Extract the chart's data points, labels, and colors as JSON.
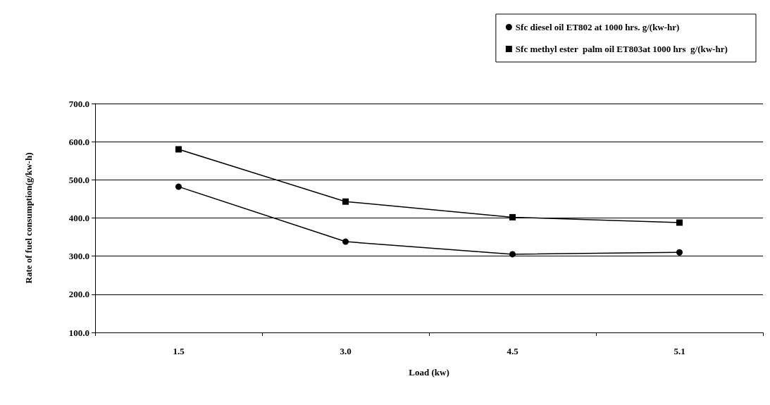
{
  "chart_data": {
    "type": "line",
    "xlabel": "Load (kw)",
    "ylabel": "Rate of fuel consumption(g/kw-h)",
    "categories": [
      "1.5",
      "3.0",
      "4.5",
      "5.1"
    ],
    "series": [
      {
        "name": "Sfc diesel oil ET802 at 1000 hrs. g/(kw-hr)",
        "color": "#000000",
        "marker": "circle",
        "values": [
          482,
          338,
          305,
          310
        ]
      },
      {
        "name": "Sfc methyl ester  palm oil ET803at 1000 hrs  g/(kw-hr)",
        "color": "#000000",
        "marker": "square",
        "values": [
          580,
          443,
          402,
          388
        ]
      }
    ],
    "ylim": [
      100,
      700
    ],
    "yticks": [
      {
        "value": 100,
        "label": "100.0"
      },
      {
        "value": 200,
        "label": "200.0"
      },
      {
        "value": 300,
        "label": "300.0"
      },
      {
        "value": 400,
        "label": "400.0"
      },
      {
        "value": 500,
        "label": "500.0"
      },
      {
        "value": 600,
        "label": "600.0"
      },
      {
        "value": 700,
        "label": "700.0"
      }
    ],
    "grid": "y",
    "legend": "top right",
    "line_style": "solid"
  }
}
